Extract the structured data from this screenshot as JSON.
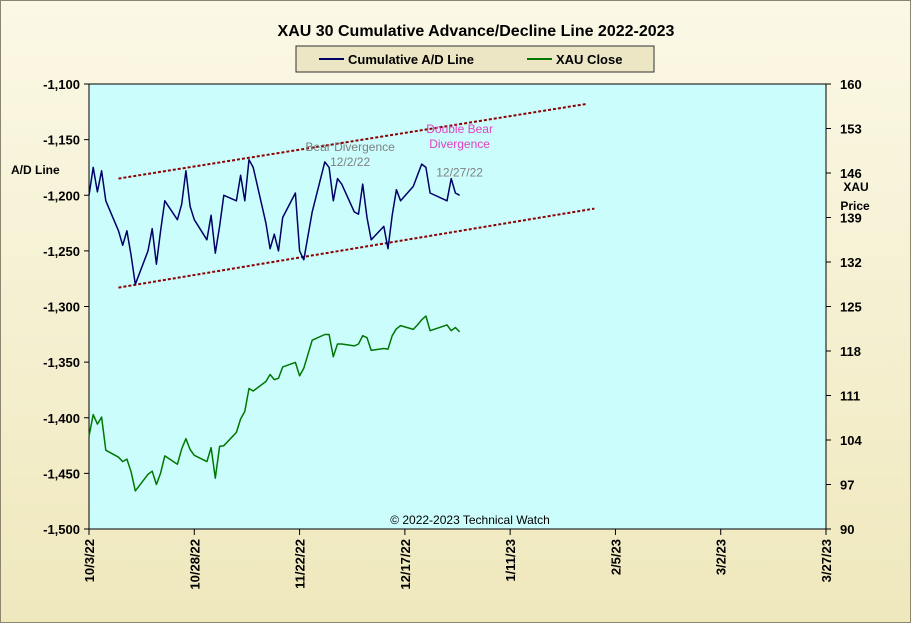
{
  "chart_data": {
    "type": "line",
    "title": "XAU 30 Cumulative Advance/Decline Line 2022-2023",
    "ylabel_left": "A/D Line",
    "ylabel_right_line1": "XAU",
    "ylabel_right_line2": "Price",
    "ylim_left": [
      -1500,
      -1100
    ],
    "ylim_right": [
      90,
      160
    ],
    "yticks_left": [
      "-1,100",
      "-1,150",
      "-1,200",
      "-1,250",
      "-1,300",
      "-1,350",
      "-1,400",
      "-1,450",
      "-1,500"
    ],
    "yticks_left_values": [
      -1100,
      -1150,
      -1200,
      -1250,
      -1300,
      -1350,
      -1400,
      -1450,
      -1500
    ],
    "yticks_right": [
      "160",
      "153",
      "146",
      "139",
      "132",
      "125",
      "118",
      "111",
      "104",
      "97",
      "90"
    ],
    "yticks_right_values": [
      160,
      153,
      146,
      139,
      132,
      125,
      118,
      111,
      104,
      97,
      90
    ],
    "x_start": "2022-10-03",
    "x_end": "2023-03-27",
    "xticks": [
      "10/3/22",
      "10/28/22",
      "11/22/22",
      "12/17/22",
      "1/11/23",
      "2/5/23",
      "3/2/23",
      "3/27/23"
    ],
    "xticks_dates": [
      "2022-10-03",
      "2022-10-28",
      "2022-11-22",
      "2022-12-17",
      "2023-01-11",
      "2023-02-05",
      "2023-03-02",
      "2023-03-27"
    ],
    "grid": false,
    "legend_position": "top-center",
    "series": [
      {
        "name": "Cumulative A/D Line",
        "axis": "left",
        "color": "#000066",
        "x": [
          "2022-10-03",
          "2022-10-04",
          "2022-10-05",
          "2022-10-06",
          "2022-10-07",
          "2022-10-10",
          "2022-10-11",
          "2022-10-12",
          "2022-10-13",
          "2022-10-14",
          "2022-10-17",
          "2022-10-18",
          "2022-10-19",
          "2022-10-20",
          "2022-10-21",
          "2022-10-24",
          "2022-10-25",
          "2022-10-26",
          "2022-10-27",
          "2022-10-28",
          "2022-10-31",
          "2022-11-01",
          "2022-11-02",
          "2022-11-03",
          "2022-11-04",
          "2022-11-07",
          "2022-11-08",
          "2022-11-09",
          "2022-11-10",
          "2022-11-11",
          "2022-11-14",
          "2022-11-15",
          "2022-11-16",
          "2022-11-17",
          "2022-11-18",
          "2022-11-21",
          "2022-11-22",
          "2022-11-23",
          "2022-11-25",
          "2022-11-28",
          "2022-11-29",
          "2022-11-30",
          "2022-12-01",
          "2022-12-02",
          "2022-12-05",
          "2022-12-06",
          "2022-12-07",
          "2022-12-08",
          "2022-12-09",
          "2022-12-12",
          "2022-12-13",
          "2022-12-14",
          "2022-12-15",
          "2022-12-16",
          "2022-12-19",
          "2022-12-20",
          "2022-12-21",
          "2022-12-22",
          "2022-12-23",
          "2022-12-27",
          "2022-12-28",
          "2022-12-29",
          "2022-12-30"
        ],
        "y": [
          -1200,
          -1175,
          -1197,
          -1178,
          -1205,
          -1232,
          -1245,
          -1232,
          -1254,
          -1280,
          -1250,
          -1230,
          -1262,
          -1232,
          -1205,
          -1222,
          -1208,
          -1178,
          -1210,
          -1222,
          -1240,
          -1218,
          -1252,
          -1228,
          -1200,
          -1205,
          -1182,
          -1205,
          -1168,
          -1175,
          -1225,
          -1248,
          -1235,
          -1250,
          -1220,
          -1198,
          -1250,
          -1258,
          -1215,
          -1170,
          -1175,
          -1205,
          -1185,
          -1190,
          -1215,
          -1217,
          -1190,
          -1220,
          -1240,
          -1228,
          -1248,
          -1218,
          -1195,
          -1205,
          -1192,
          -1182,
          -1172,
          -1175,
          -1198,
          -1205,
          -1185,
          -1198,
          -1200
        ]
      },
      {
        "name": "XAU Close",
        "axis": "right",
        "color": "#007700",
        "x": [
          "2022-10-03",
          "2022-10-04",
          "2022-10-05",
          "2022-10-06",
          "2022-10-07",
          "2022-10-10",
          "2022-10-11",
          "2022-10-12",
          "2022-10-13",
          "2022-10-14",
          "2022-10-17",
          "2022-10-18",
          "2022-10-19",
          "2022-10-20",
          "2022-10-21",
          "2022-10-24",
          "2022-10-25",
          "2022-10-26",
          "2022-10-27",
          "2022-10-28",
          "2022-10-31",
          "2022-11-01",
          "2022-11-02",
          "2022-11-03",
          "2022-11-04",
          "2022-11-07",
          "2022-11-08",
          "2022-11-09",
          "2022-11-10",
          "2022-11-11",
          "2022-11-14",
          "2022-11-15",
          "2022-11-16",
          "2022-11-17",
          "2022-11-18",
          "2022-11-21",
          "2022-11-22",
          "2022-11-23",
          "2022-11-25",
          "2022-11-28",
          "2022-11-29",
          "2022-11-30",
          "2022-12-01",
          "2022-12-02",
          "2022-12-05",
          "2022-12-06",
          "2022-12-07",
          "2022-12-08",
          "2022-12-09",
          "2022-12-12",
          "2022-12-13",
          "2022-12-14",
          "2022-12-15",
          "2022-12-16",
          "2022-12-19",
          "2022-12-20",
          "2022-12-21",
          "2022-12-22",
          "2022-12-23",
          "2022-12-27",
          "2022-12-28",
          "2022-12-29",
          "2022-12-30"
        ],
        "y": [
          104.6,
          108.0,
          106.5,
          107.6,
          102.4,
          101.3,
          100.6,
          101.0,
          99.0,
          96.0,
          98.6,
          99.1,
          97.0,
          98.8,
          101.5,
          100.2,
          102.6,
          104.2,
          102.5,
          101.6,
          100.6,
          102.8,
          98.0,
          103.0,
          103.1,
          105.2,
          107.3,
          108.5,
          112.1,
          111.7,
          113.2,
          114.3,
          113.5,
          113.7,
          115.5,
          116.2,
          114.1,
          115.3,
          119.7,
          120.6,
          120.6,
          117.1,
          119.1,
          119.1,
          118.8,
          119.1,
          120.4,
          120.1,
          118.1,
          118.4,
          118.3,
          120.4,
          121.5,
          122.0,
          121.4,
          122.1,
          122.9,
          123.5,
          121.2,
          122.1,
          121.2,
          121.7,
          121.0
        ]
      }
    ],
    "trend_lines": [
      {
        "x": [
          "2022-10-10",
          "2023-01-29"
        ],
        "y": [
          -1185,
          -1118
        ],
        "color": "#8b0000"
      },
      {
        "x": [
          "2022-10-10",
          "2023-01-31"
        ],
        "y": [
          -1283,
          -1212
        ],
        "color": "#8b0000"
      }
    ],
    "annotations": [
      {
        "lines": [
          "Bear Divergence",
          "12/2/22"
        ],
        "color": "#7f7f7f",
        "x": "2022-12-04",
        "y": -1160
      },
      {
        "lines": [
          "Double Bear",
          "Divergence"
        ],
        "color": "#e040c0",
        "x": "2022-12-30",
        "y": -1144
      },
      {
        "lines": [
          "12/27/22"
        ],
        "color": "#7f7f7f",
        "x": "2022-12-30",
        "y": -1183
      }
    ],
    "copyright": "© 2022-2023  Technical Watch"
  }
}
